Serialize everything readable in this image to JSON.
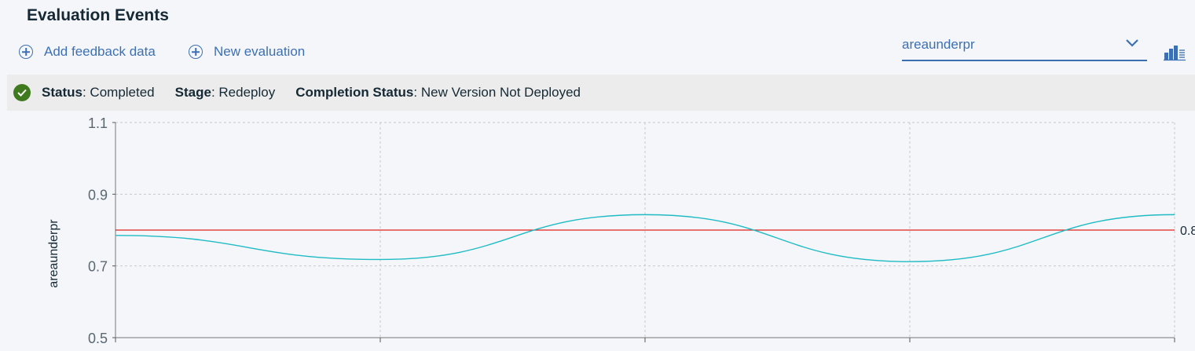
{
  "header": {
    "title": "Evaluation Events"
  },
  "actions": {
    "add_feedback_label": "Add feedback data",
    "new_evaluation_label": "New evaluation"
  },
  "metric_select": {
    "value": "areaunderpr"
  },
  "status": {
    "status_key": "Status",
    "status_value": "Completed",
    "stage_key": "Stage",
    "stage_value": "Redeploy",
    "completion_key": "Completion Status",
    "completion_value": "New Version Not Deployed"
  },
  "colors": {
    "accent": "#3d70b2",
    "status_ok": "#3f7a1e",
    "series": "#1fbbc4",
    "threshold": "#e0201b"
  },
  "chart_data": {
    "type": "line",
    "ylabel": "areaunderpr",
    "ylim": [
      0.5,
      1.1
    ],
    "yticks": [
      "1.1",
      "0.9",
      "0.7",
      "0.5"
    ],
    "x": [
      0,
      1,
      2,
      3,
      4
    ],
    "series": [
      {
        "values": [
          0.785,
          0.718,
          0.843,
          0.712,
          0.843
        ]
      }
    ],
    "threshold": {
      "value": 0.8,
      "label": "0.8"
    },
    "grid": true
  }
}
